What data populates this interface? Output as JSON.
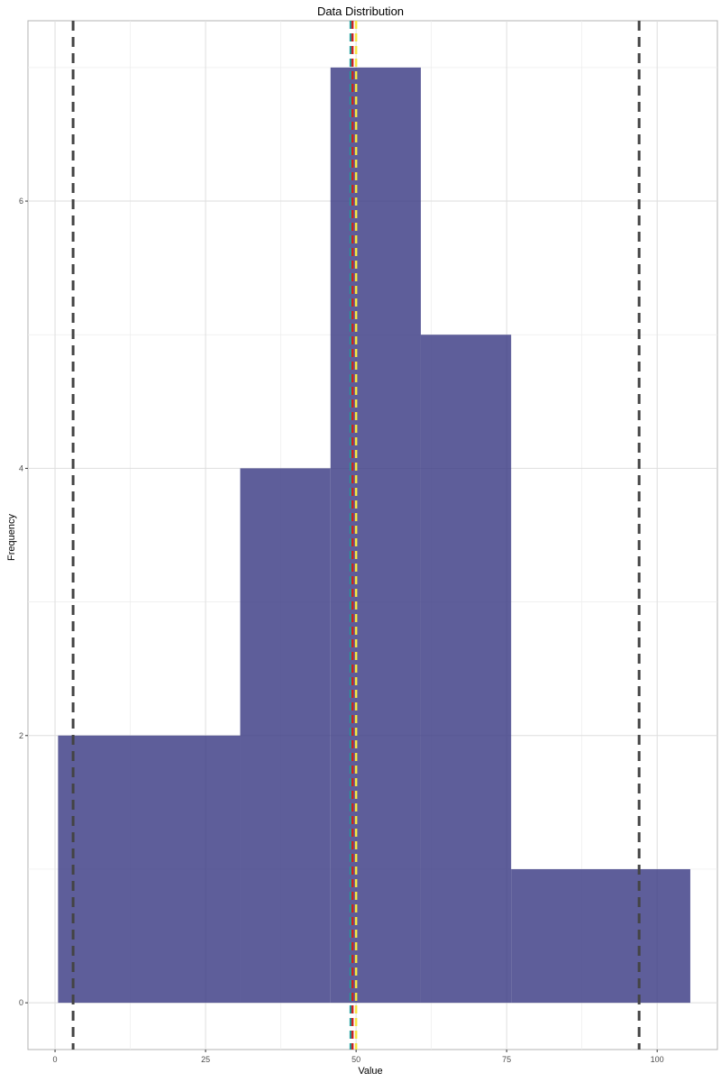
{
  "chart_data": {
    "type": "bar",
    "title": "Data Distribution",
    "xlabel": "Value",
    "ylabel": "Frequency",
    "xlim": [
      -4.5,
      110
    ],
    "ylim": [
      -0.35,
      7.35
    ],
    "x_ticks": [
      0,
      25,
      50,
      75,
      100
    ],
    "y_ticks": [
      0,
      2,
      4,
      6
    ],
    "grid": true,
    "bins": [
      {
        "x_start": 0.5,
        "x_end": 30.75,
        "count": 2
      },
      {
        "x_start": 30.75,
        "x_end": 45.75,
        "count": 4
      },
      {
        "x_start": 45.75,
        "x_end": 60.75,
        "count": 7
      },
      {
        "x_start": 60.75,
        "x_end": 75.75,
        "count": 5
      },
      {
        "x_start": 75.75,
        "x_end": 105.5,
        "count": 1
      }
    ],
    "bar_color": "#3b3b84",
    "reference_lines": [
      {
        "x": 3.0,
        "color": "#444444",
        "style": "dashed"
      },
      {
        "x": 97.0,
        "color": "#444444",
        "style": "dashed"
      },
      {
        "x": 49.1,
        "color": "#1a9e9e",
        "style": "dashed"
      },
      {
        "x": 49.4,
        "color": "#cc2222",
        "style": "dashed"
      },
      {
        "x": 50.0,
        "color": "#f5e642",
        "style": "dashed"
      }
    ]
  }
}
